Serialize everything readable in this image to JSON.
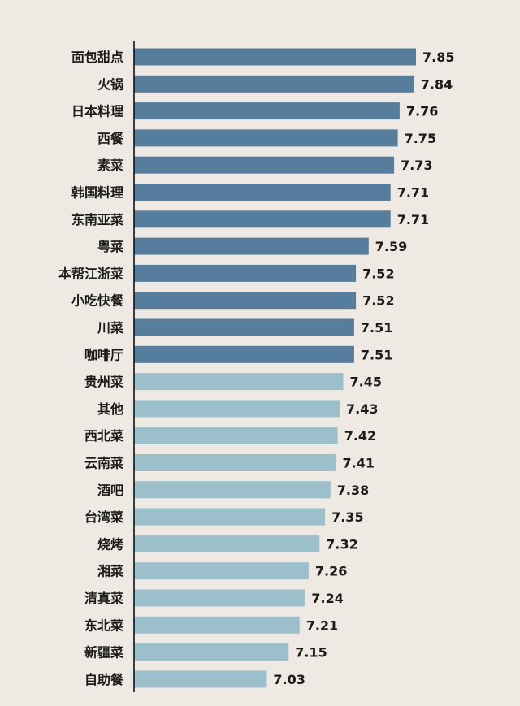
{
  "chart_data": {
    "type": "bar",
    "orientation": "horizontal",
    "categories": [
      "面包甜点",
      "火锅",
      "日本料理",
      "西餐",
      "素菜",
      "韩国料理",
      "东南亚菜",
      "粤菜",
      "本帮江浙菜",
      "小吃快餐",
      "川菜",
      "咖啡厅",
      "贵州菜",
      "其他",
      "西北菜",
      "云南菜",
      "酒吧",
      "台湾菜",
      "烧烤",
      "湘菜",
      "清真菜",
      "东北菜",
      "新疆菜",
      "自助餐"
    ],
    "values": [
      7.85,
      7.84,
      7.76,
      7.75,
      7.73,
      7.71,
      7.71,
      7.59,
      7.52,
      7.52,
      7.51,
      7.51,
      7.45,
      7.43,
      7.42,
      7.41,
      7.38,
      7.35,
      7.32,
      7.26,
      7.24,
      7.21,
      7.15,
      7.03
    ],
    "value_labels": [
      "7.85",
      "7.84",
      "7.76",
      "7.75",
      "7.73",
      "7.71",
      "7.71",
      "7.59",
      "7.52",
      "7.52",
      "7.51",
      "7.51",
      "7.45",
      "7.43",
      "7.42",
      "7.41",
      "7.38",
      "7.35",
      "7.32",
      "7.26",
      "7.24",
      "7.21",
      "7.15",
      "7.03"
    ],
    "groups": [
      {
        "count": 12,
        "color": "#567d9b"
      },
      {
        "count": 12,
        "color": "#9bc0cc"
      }
    ],
    "title": "",
    "xlabel": "",
    "ylabel": "",
    "xlim": [
      6.3,
      7.9
    ],
    "grid": false,
    "legend": "none"
  }
}
